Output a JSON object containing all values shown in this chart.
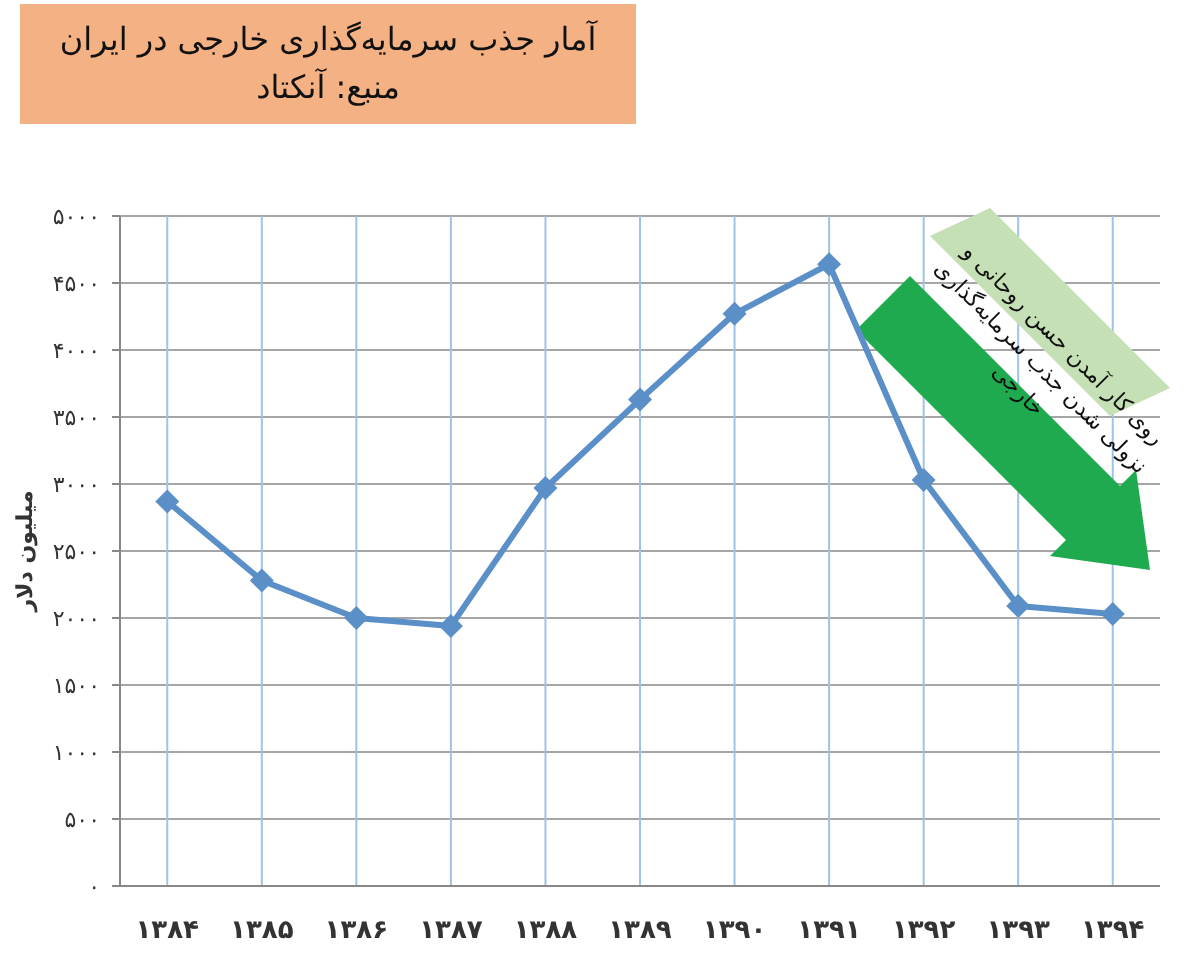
{
  "chart_data": {
    "type": "line",
    "title": "آمار جذب سرمایه‌گذاری خارجی در ایران",
    "subtitle": "منبع: آنکتاد",
    "ylabel": "میلیون دلار",
    "categories": [
      "۱۳۸۴",
      "۱۳۸۵",
      "۱۳۸۶",
      "۱۳۸۷",
      "۱۳۸۸",
      "۱۳۸۹",
      "۱۳۹۰",
      "۱۳۹۱",
      "۱۳۹۲",
      "۱۳۹۳",
      "۱۳۹۴"
    ],
    "series": [
      {
        "color": "#5b8fc7",
        "values": [
          2870,
          2280,
          2000,
          1940,
          2970,
          3630,
          4270,
          4640,
          3030,
          2090,
          2030
        ]
      }
    ],
    "ylim": [
      0,
      5000
    ],
    "yticks": [
      {
        "value": 0,
        "label": "۰"
      },
      {
        "value": 500,
        "label": "۵۰۰"
      },
      {
        "value": 1000,
        "label": "۱۰۰۰"
      },
      {
        "value": 1500,
        "label": "۱۵۰۰"
      },
      {
        "value": 2000,
        "label": "۲۰۰۰"
      },
      {
        "value": 2500,
        "label": "۲۵۰۰"
      },
      {
        "value": 3000,
        "label": "۳۰۰۰"
      },
      {
        "value": 3500,
        "label": "۳۵۰۰"
      },
      {
        "value": 4000,
        "label": "۴۰۰۰"
      },
      {
        "value": 4500,
        "label": "۴۵۰۰"
      },
      {
        "value": 5000,
        "label": "۵۰۰۰"
      }
    ],
    "grid": true,
    "marker": "diamond",
    "line_style": "solid",
    "annotations": [
      "روی کار آمدن حسن روحانی و نزولی شدن جذب سرمایه‌گذاری خارجی"
    ]
  }
}
